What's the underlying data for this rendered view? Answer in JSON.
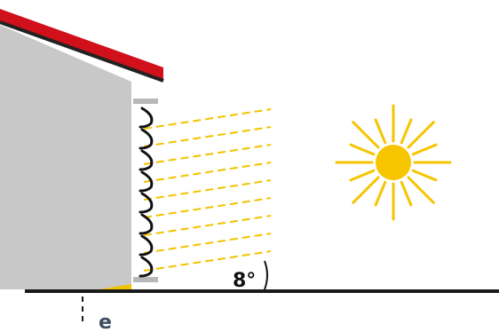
{
  "labels": {
    "angle": "8°",
    "distance": "e"
  },
  "colors": {
    "background": "#ffffff",
    "roof": "#d0101a",
    "roof_edge": "#222222",
    "wall": "#c8c8c8",
    "ground": "#1a1a1a",
    "light_rays": "#f2c300",
    "sun": "#f7c500",
    "slat": "#111111",
    "bracket": "#b8b8b8",
    "distance_label": "#3d4d63"
  },
  "icons": {
    "sun": "sun-icon"
  },
  "diagram": {
    "slat_count": 8,
    "ray_count": 9,
    "sun_rays": 16
  }
}
